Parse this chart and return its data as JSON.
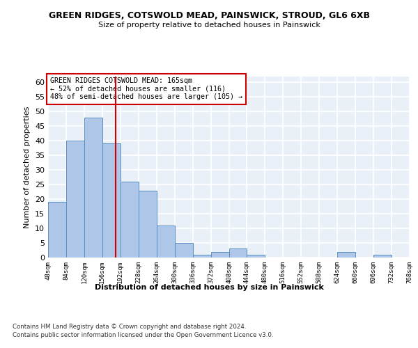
{
  "title": "GREEN RIDGES, COTSWOLD MEAD, PAINSWICK, STROUD, GL6 6XB",
  "subtitle": "Size of property relative to detached houses in Painswick",
  "xlabel": "Distribution of detached houses by size in Painswick",
  "ylabel": "Number of detached properties",
  "bar_values": [
    19,
    40,
    48,
    39,
    26,
    23,
    11,
    5,
    1,
    2,
    3,
    1,
    0,
    0,
    0,
    0,
    2,
    0,
    1,
    0
  ],
  "bin_labels": [
    "48sqm",
    "84sqm",
    "120sqm",
    "156sqm",
    "192sqm",
    "228sqm",
    "264sqm",
    "300sqm",
    "336sqm",
    "372sqm",
    "408sqm",
    "444sqm",
    "480sqm",
    "516sqm",
    "552sqm",
    "588sqm",
    "624sqm",
    "660sqm",
    "696sqm",
    "732sqm",
    "768sqm"
  ],
  "bar_color": "#aec6e8",
  "bar_edge_color": "#5a8fc2",
  "bg_color": "#eaf0f8",
  "grid_color": "#ffffff",
  "vline_color": "#cc0000",
  "vline_pos": 3.25,
  "annotation_line1": "GREEN RIDGES COTSWOLD MEAD: 165sqm",
  "annotation_line2": "← 52% of detached houses are smaller (116)",
  "annotation_line3": "48% of semi-detached houses are larger (105) →",
  "annotation_box_color": "#ffffff",
  "annotation_box_edge": "#cc0000",
  "ylim": [
    0,
    62
  ],
  "yticks": [
    0,
    5,
    10,
    15,
    20,
    25,
    30,
    35,
    40,
    45,
    50,
    55,
    60
  ],
  "footer1": "Contains HM Land Registry data © Crown copyright and database right 2024.",
  "footer2": "Contains public sector information licensed under the Open Government Licence v3.0."
}
